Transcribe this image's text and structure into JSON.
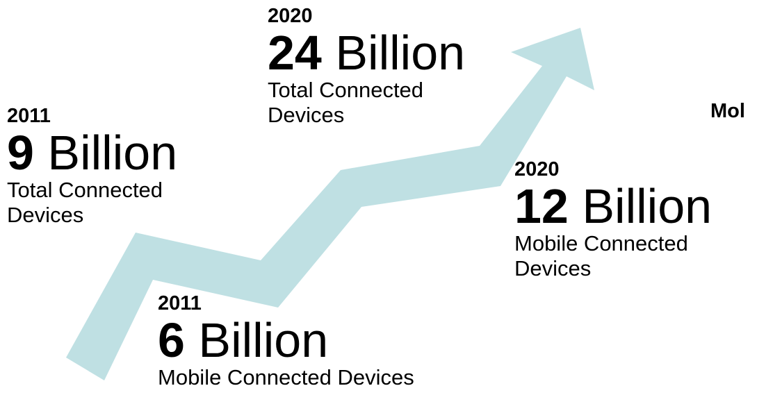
{
  "colors": {
    "background": "#ffffff",
    "arrow": "#bfe0e3",
    "text": "#000000"
  },
  "stats": [
    {
      "year": "2011",
      "number": "9",
      "unit": "Billion",
      "caption": "Total Connected\nDevices"
    },
    {
      "year": "2020",
      "number": "24",
      "unit": "Billion",
      "caption": "Total Connected\nDevices"
    },
    {
      "year": "2011",
      "number": "6",
      "unit": "Billion",
      "caption": "Mobile Connected Devices"
    },
    {
      "year": "2020",
      "number": "12",
      "unit": "Billion",
      "caption": "Mobile Connected\nDevices"
    }
  ],
  "cropped_heading": "Mol"
}
